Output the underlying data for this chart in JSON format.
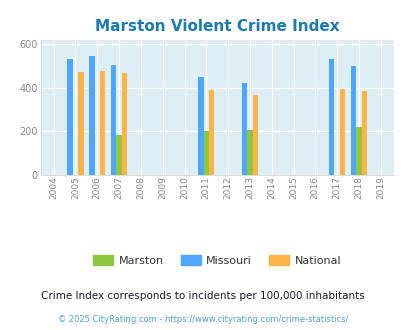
{
  "title": "Marston Violent Crime Index",
  "years": [
    2004,
    2005,
    2006,
    2007,
    2008,
    2009,
    2010,
    2011,
    2012,
    2013,
    2014,
    2015,
    2016,
    2017,
    2018,
    2019
  ],
  "marston": {
    "2007": 185,
    "2011": 200,
    "2013": 205,
    "2018": 220
  },
  "missouri": {
    "2005": 530,
    "2006": 545,
    "2007": 505,
    "2011": 450,
    "2013": 420,
    "2017": 530,
    "2018": 500
  },
  "national": {
    "2005": 470,
    "2006": 475,
    "2007": 465,
    "2011": 390,
    "2013": 365,
    "2017": 395,
    "2018": 385
  },
  "color_marston": "#8dc63f",
  "color_missouri": "#4da6ff",
  "color_national": "#ffb347",
  "color_bg": "#ddeef4",
  "ylim": [
    0,
    620
  ],
  "yticks": [
    0,
    200,
    400,
    600
  ],
  "footnote1": "Crime Index corresponds to incidents per 100,000 inhabitants",
  "footnote2": "© 2025 CityRating.com - https://www.cityrating.com/crime-statistics/",
  "bar_width": 0.25
}
